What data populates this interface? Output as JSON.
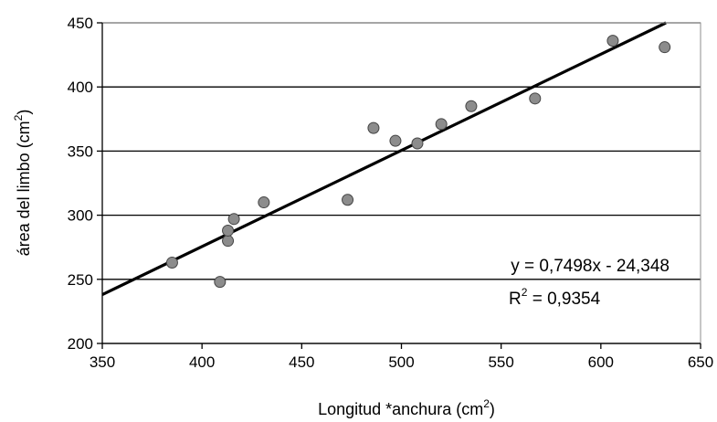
{
  "chart_data": {
    "type": "scatter",
    "xlabel": "Longitud *anchura (cm",
    "xlabel_sup": "2",
    "xlabel_end": ")",
    "ylabel": "área del limbo (cm",
    "ylabel_sup": "2",
    "ylabel_end": ")",
    "xlim": [
      350,
      650
    ],
    "ylim": [
      200,
      450
    ],
    "xticks": [
      350,
      400,
      450,
      500,
      550,
      600,
      650
    ],
    "yticks": [
      200,
      250,
      300,
      350,
      400,
      450
    ],
    "grid": "horizontal",
    "series": [
      {
        "x": [
          385,
          409,
          413,
          413,
          416,
          431,
          473,
          486,
          497,
          508,
          520,
          535,
          567,
          606,
          632
        ],
        "y": [
          263,
          248,
          280,
          288,
          297,
          310,
          312,
          368,
          358,
          356,
          371,
          385,
          391,
          436,
          431
        ],
        "color": "#8c8c8c"
      }
    ],
    "trendline": {
      "slope": 0.7498,
      "intercept": -24.348,
      "color": "#000000"
    },
    "equation": "y = 0,7498x - 24,348",
    "r2_prefix": "R",
    "r2_sup": "2",
    "r2_value": " = 0,9354"
  }
}
